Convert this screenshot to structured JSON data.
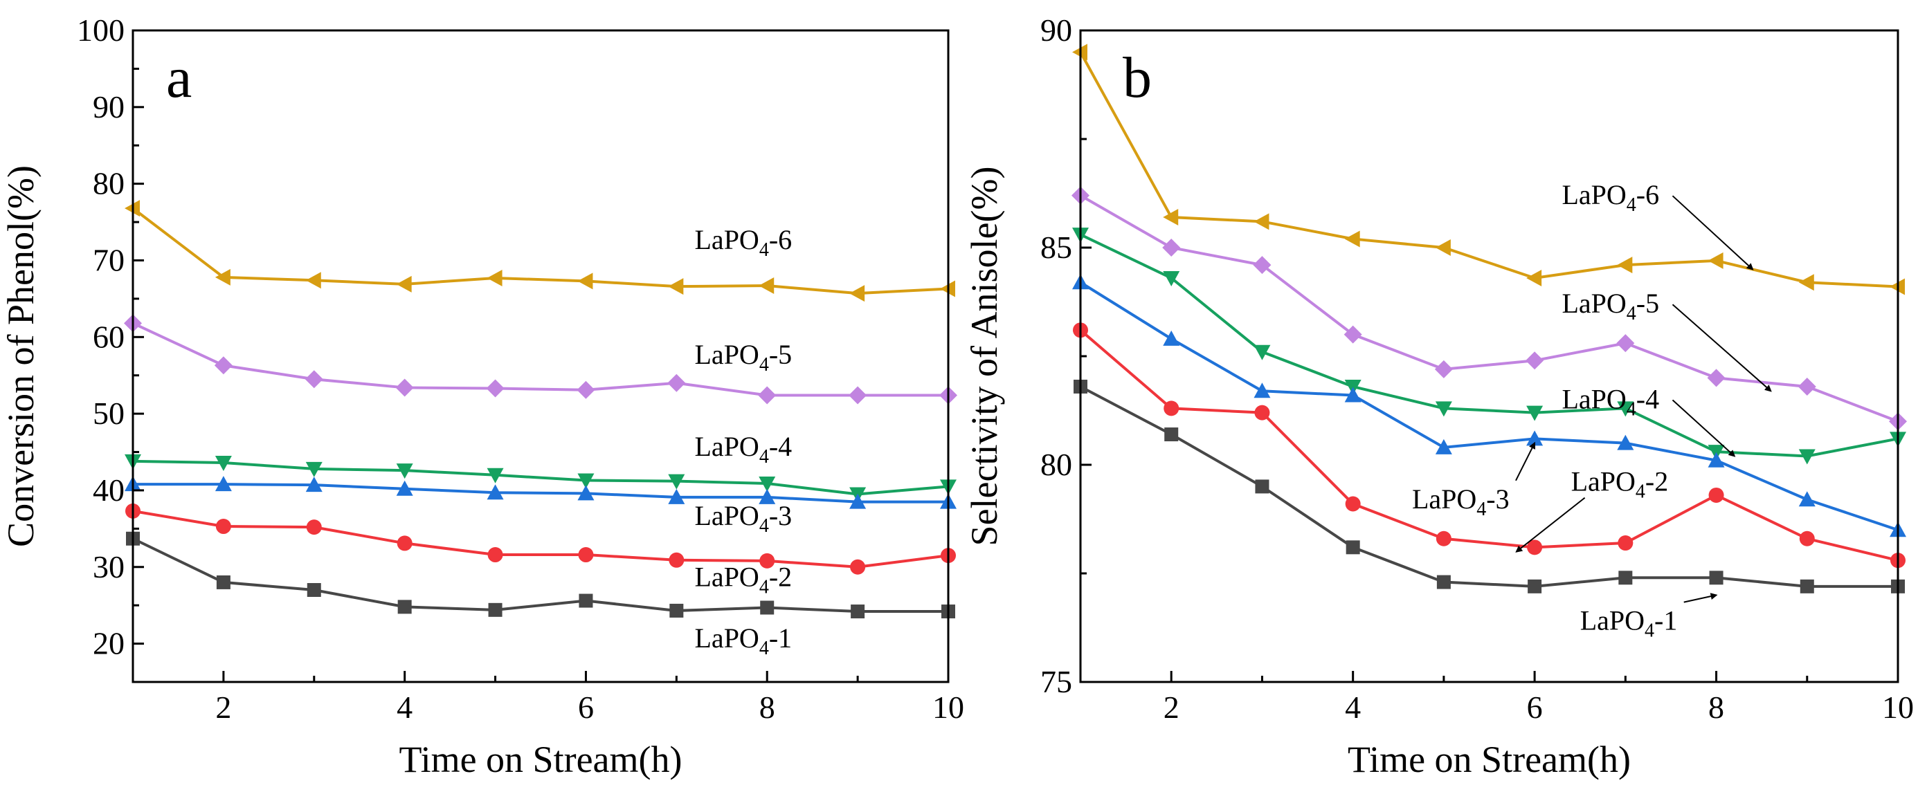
{
  "chart_data": [
    {
      "panel": "a",
      "type": "line",
      "xlabel": "Time on Stream(h)",
      "ylabel": "Conversion of Phenol(%)",
      "xlim": [
        1,
        10
      ],
      "ylim": [
        15,
        100
      ],
      "xticks": [
        2,
        4,
        6,
        8,
        10
      ],
      "yticks": [
        20,
        30,
        40,
        50,
        60,
        70,
        80,
        90,
        100
      ],
      "x": [
        1,
        2,
        3,
        4,
        5,
        6,
        7,
        8,
        9,
        10
      ],
      "series": [
        {
          "name": "LaPO₄-6",
          "base": "LaPO",
          "sub": "4",
          "suffix": "-6",
          "color": "#D79D12",
          "marker": "triangle-left",
          "values": [
            76.8,
            67.8,
            67.4,
            66.9,
            67.7,
            67.3,
            66.6,
            66.7,
            65.7,
            66.3
          ]
        },
        {
          "name": "LaPO₄-5",
          "base": "LaPO",
          "sub": "4",
          "suffix": "-5",
          "color": "#C184E0",
          "marker": "diamond",
          "values": [
            61.8,
            56.3,
            54.5,
            53.4,
            53.3,
            53.1,
            54.0,
            52.4,
            52.4,
            52.4
          ]
        },
        {
          "name": "LaPO₄-4",
          "base": "LaPO",
          "sub": "4",
          "suffix": "-4",
          "color": "#16A15F",
          "marker": "triangle-down",
          "values": [
            43.8,
            43.6,
            42.8,
            42.6,
            42.0,
            41.3,
            41.2,
            40.9,
            39.5,
            40.5
          ]
        },
        {
          "name": "LaPO₄-3",
          "base": "LaPO",
          "sub": "4",
          "suffix": "-3",
          "color": "#1F72D8",
          "marker": "triangle-up",
          "values": [
            40.8,
            40.8,
            40.7,
            40.2,
            39.7,
            39.6,
            39.1,
            39.1,
            38.5,
            38.5
          ]
        },
        {
          "name": "LaPO₄-2",
          "base": "LaPO",
          "sub": "4",
          "suffix": "-2",
          "color": "#F0353B",
          "marker": "circle",
          "values": [
            37.3,
            35.3,
            35.2,
            33.1,
            31.6,
            31.6,
            30.9,
            30.8,
            30.0,
            31.5
          ]
        },
        {
          "name": "LaPO₄-1",
          "base": "LaPO",
          "sub": "4",
          "suffix": "-1",
          "color": "#474747",
          "marker": "square",
          "values": [
            33.7,
            28.0,
            27.0,
            24.8,
            24.4,
            25.6,
            24.3,
            24.7,
            24.2,
            24.2
          ]
        }
      ],
      "annotations": [
        {
          "text": "LaPO₄-6",
          "base": "LaPO",
          "sub": "4",
          "suffix": "-6",
          "x": 7.2,
          "y": 71.5
        },
        {
          "text": "LaPO₄-5",
          "base": "LaPO",
          "sub": "4",
          "suffix": "-5",
          "x": 7.2,
          "y": 56.5
        },
        {
          "text": "LaPO₄-4",
          "base": "LaPO",
          "sub": "4",
          "suffix": "-4",
          "x": 7.2,
          "y": 44.5
        },
        {
          "text": "LaPO₄-3",
          "base": "LaPO",
          "sub": "4",
          "suffix": "-3",
          "x": 7.2,
          "y": 35.5
        },
        {
          "text": "LaPO₄-2",
          "base": "LaPO",
          "sub": "4",
          "suffix": "-2",
          "x": 7.2,
          "y": 27.5
        },
        {
          "text": "LaPO₄-1",
          "base": "LaPO",
          "sub": "4",
          "suffix": "-1",
          "x": 7.2,
          "y": 19.5
        }
      ]
    },
    {
      "panel": "b",
      "type": "line",
      "xlabel": "Time on Stream(h)",
      "ylabel": "Selectivity of Anisole(%)",
      "xlim": [
        1,
        10
      ],
      "ylim": [
        75,
        90
      ],
      "xticks": [
        2,
        4,
        6,
        8,
        10
      ],
      "yticks": [
        75,
        80,
        85,
        90
      ],
      "x": [
        1,
        2,
        3,
        4,
        5,
        6,
        7,
        8,
        9,
        10
      ],
      "series": [
        {
          "name": "LaPO₄-6",
          "base": "LaPO",
          "sub": "4",
          "suffix": "-6",
          "color": "#D79D12",
          "marker": "triangle-left",
          "values": [
            89.5,
            85.7,
            85.6,
            85.2,
            85.0,
            84.3,
            84.6,
            84.7,
            84.2,
            84.1
          ]
        },
        {
          "name": "LaPO₄-5",
          "base": "LaPO",
          "sub": "4",
          "suffix": "-5",
          "color": "#C184E0",
          "marker": "diamond",
          "values": [
            86.2,
            85.0,
            84.6,
            83.0,
            82.2,
            82.4,
            82.8,
            82.0,
            81.8,
            81.0
          ]
        },
        {
          "name": "LaPO₄-4",
          "base": "LaPO",
          "sub": "4",
          "suffix": "-4",
          "color": "#16A15F",
          "marker": "triangle-down",
          "values": [
            85.3,
            84.3,
            82.6,
            81.8,
            81.3,
            81.2,
            81.3,
            80.3,
            80.2,
            80.6
          ]
        },
        {
          "name": "LaPO₄-3",
          "base": "LaPO",
          "sub": "4",
          "suffix": "-3",
          "color": "#1F72D8",
          "marker": "triangle-up",
          "values": [
            84.2,
            82.9,
            81.7,
            81.6,
            80.4,
            80.6,
            80.5,
            80.1,
            79.2,
            78.5
          ]
        },
        {
          "name": "LaPO₄-2",
          "base": "LaPO",
          "sub": "4",
          "suffix": "-2",
          "color": "#F0353B",
          "marker": "circle",
          "values": [
            83.1,
            81.3,
            81.2,
            79.1,
            78.3,
            78.1,
            78.2,
            79.3,
            78.3,
            77.8
          ]
        },
        {
          "name": "LaPO₄-1",
          "base": "LaPO",
          "sub": "4",
          "suffix": "-1",
          "color": "#474747",
          "marker": "square",
          "values": [
            81.8,
            80.7,
            79.5,
            78.1,
            77.3,
            77.2,
            77.4,
            77.4,
            77.2,
            77.2
          ]
        }
      ],
      "annotations": [
        {
          "text": "LaPO₄-6",
          "base": "LaPO",
          "sub": "4",
          "suffix": "-6",
          "x": 6.3,
          "y": 86.0,
          "arrow_to": [
            8.4,
            84.5
          ]
        },
        {
          "text": "LaPO₄-5",
          "base": "LaPO",
          "sub": "4",
          "suffix": "-5",
          "x": 6.3,
          "y": 83.5,
          "arrow_to": [
            8.6,
            81.7
          ]
        },
        {
          "text": "LaPO₄-4",
          "base": "LaPO",
          "sub": "4",
          "suffix": "-4",
          "x": 6.3,
          "y": 81.3,
          "arrow_to": [
            8.2,
            80.2
          ]
        },
        {
          "text": "LaPO₄-3",
          "base": "LaPO",
          "sub": "4",
          "suffix": "-3",
          "x": 4.65,
          "y": 79.0,
          "arrow_to": [
            6.0,
            80.5
          ]
        },
        {
          "text": "LaPO₄-2",
          "base": "LaPO",
          "sub": "4",
          "suffix": "-2",
          "x": 6.4,
          "y": 79.4,
          "arrow_to": [
            5.8,
            78.0
          ]
        },
        {
          "text": "LaPO₄-1",
          "base": "LaPO",
          "sub": "4",
          "suffix": "-1",
          "x": 6.5,
          "y": 76.2,
          "arrow_to": [
            8.0,
            77.0
          ]
        }
      ]
    }
  ]
}
